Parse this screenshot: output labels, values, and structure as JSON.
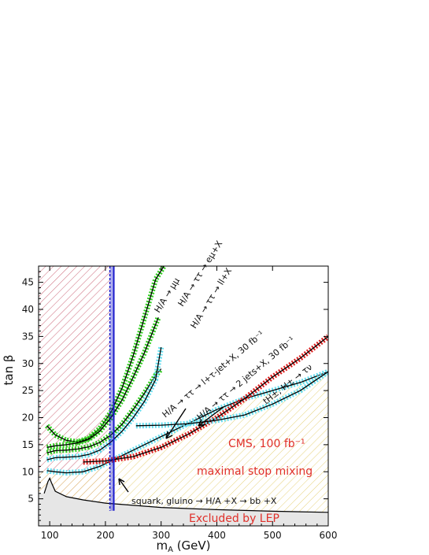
{
  "chart_data": {
    "type": "line",
    "title": "",
    "xlabel": "m",
    "xlabel_sub": "A",
    "xlabel_unit": " (GeV)",
    "ylabel": "tan β",
    "xlim": [
      80,
      600
    ],
    "ylim": [
      0,
      48
    ],
    "xticks": [
      100,
      200,
      300,
      400,
      500,
      600
    ],
    "yticks": [
      5,
      10,
      15,
      20,
      25,
      30,
      35,
      40,
      45
    ],
    "grid": false,
    "legend": "none",
    "colors": {
      "green": "#33cc22",
      "cyan": "#66ddee",
      "red": "#dd2222",
      "blue": "#1a1acc",
      "lep_fill": "#e6e6e6",
      "hatch_red": "#cc6677",
      "hatch_yellow": "#e6d27a"
    },
    "excluded_lep": {
      "label": "Excluded by LEP",
      "x": [
        90,
        97,
        100,
        103,
        110,
        130,
        160,
        200,
        300,
        400,
        500,
        600
      ],
      "y": [
        6.0,
        8.2,
        8.8,
        8.0,
        6.4,
        5.4,
        4.8,
        4.2,
        3.4,
        3.0,
        2.7,
        2.5
      ]
    },
    "series": [
      {
        "name": "H/A → μμ",
        "color": "green",
        "x": [
          95,
          110,
          130,
          150,
          170,
          190,
          210,
          230,
          250,
          270,
          290,
          305
        ],
        "y": [
          18.5,
          16.8,
          15.8,
          15.5,
          16.2,
          18.0,
          21.0,
          25.5,
          31.5,
          38.5,
          45.5,
          48.0
        ]
      },
      {
        "name": "H/A → ττ → eμ+X",
        "color": "green",
        "x": [
          95,
          110,
          130,
          150,
          170,
          190,
          210,
          230,
          250,
          270,
          295
        ],
        "y": [
          14.5,
          14.8,
          15.0,
          15.3,
          16.0,
          17.5,
          20.0,
          23.3,
          27.5,
          32.0,
          38.5
        ]
      },
      {
        "name": "H/A → ττ → ll+X",
        "color": "green",
        "x": [
          95,
          110,
          130,
          150,
          170,
          190,
          210,
          230,
          250,
          270,
          290,
          300
        ],
        "y": [
          13.5,
          13.9,
          14.0,
          14.2,
          14.6,
          15.4,
          16.8,
          18.8,
          21.5,
          24.5,
          27.8,
          29.0
        ]
      },
      {
        "name": "H/A → ττ → l+τ-jet+X, 30 fb⁻¹",
        "color": "cyan",
        "x": [
          95,
          110,
          130,
          150,
          170,
          190,
          210,
          230,
          250,
          270,
          290,
          300
        ],
        "y": [
          12.2,
          12.6,
          12.7,
          12.8,
          13.2,
          14.0,
          15.5,
          17.5,
          20.0,
          23.0,
          27.0,
          33.0
        ]
      },
      {
        "name": "H/A → ττ → 2 jets+X, 30 fb⁻¹",
        "color": "cyan",
        "x": [
          95,
          110,
          130,
          160,
          190,
          220,
          250,
          300,
          350,
          400,
          450,
          500,
          550,
          600
        ],
        "y": [
          10.2,
          10.0,
          9.8,
          10.0,
          11.0,
          12.5,
          14.0,
          16.5,
          19.0,
          21.5,
          23.5,
          25.0,
          26.5,
          28.5
        ]
      },
      {
        "name": "tH±, H± → τν",
        "color": "red",
        "x": [
          160,
          200,
          250,
          300,
          350,
          400,
          450,
          500,
          550,
          600
        ],
        "y": [
          11.8,
          12.0,
          12.8,
          14.5,
          17.0,
          20.0,
          23.5,
          27.5,
          31.0,
          35.0
        ]
      },
      {
        "name": "H/A → ττ (high mass)",
        "color": "cyan",
        "x": [
          255,
          300,
          350,
          400,
          450,
          500,
          550,
          600
        ],
        "y": [
          18.5,
          18.6,
          18.9,
          19.5,
          20.5,
          22.5,
          25.0,
          28.5
        ]
      }
    ],
    "bands": [
      {
        "name": "blue band",
        "x": [
          208,
          215
        ],
        "ylim": [
          2.8,
          48
        ],
        "color": "blue"
      }
    ],
    "annotations": {
      "mu_mu": "H/A → μμ",
      "tautau_emu": "H/A → ττ → eμ+X",
      "tautau_ll": "H/A → ττ → ll+X",
      "tautau_ltaujet": "H/A → ττ → l+τ-jet+X, 30 fb⁻¹",
      "tautau_2jets": "H/A → ττ → 2 jets+X, 30 fb⁻¹",
      "tH": "tH±, H± → τν",
      "cms": "CMS, 100 fb⁻¹",
      "stop": "maximal stop mixing",
      "squark": "squark, gluino → H/A +X → bb +X"
    }
  }
}
